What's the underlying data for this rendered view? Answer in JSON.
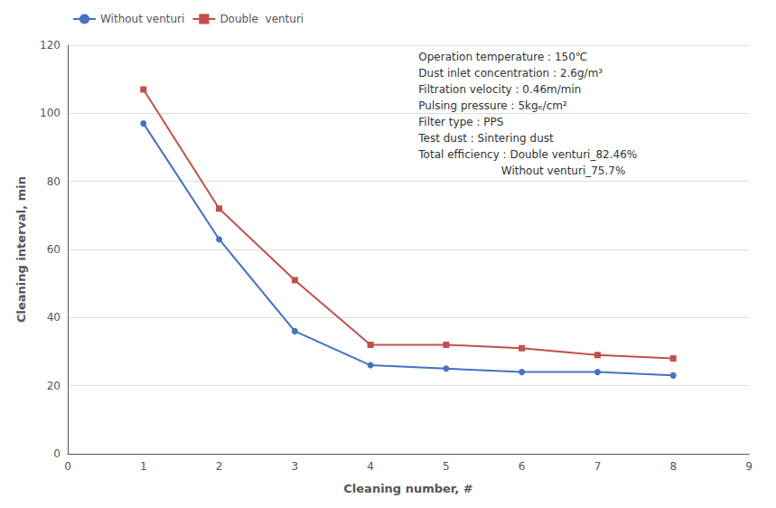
{
  "chart_data": {
    "type": "line",
    "x": [
      1,
      2,
      3,
      4,
      5,
      6,
      7,
      8
    ],
    "series": [
      {
        "name": "Without venturi",
        "color": "#4472C4",
        "marker": "circle",
        "values": [
          97,
          63,
          36,
          26,
          25,
          24,
          24,
          23
        ]
      },
      {
        "name": "Double  venturi",
        "color": "#C0504D",
        "marker": "square",
        "values": [
          107,
          72,
          51,
          32,
          32,
          31,
          29,
          28
        ]
      }
    ],
    "xlabel": "Cleaning number, #",
    "ylabel": "Cleaning interval, min",
    "xlim": [
      0,
      9
    ],
    "xticks": [
      0,
      1,
      2,
      3,
      4,
      5,
      6,
      7,
      8,
      9
    ],
    "ylim": [
      0,
      120
    ],
    "yticks": [
      0,
      20,
      40,
      60,
      80,
      100,
      120
    ],
    "grid": true,
    "legend": "upper left",
    "annotations": [
      "Operation temperature : 150℃",
      "Dust inlet concentration : 2.6g/m³",
      "Filtration velocity : 0.46m/min",
      "Pulsing pressure : 5kgₑ/cm²",
      "Filter type : PPS",
      "Test dust : Sintering dust",
      "Total efficiency : Double venturi_82.46%",
      "                        Without venturi_75.7%"
    ]
  }
}
